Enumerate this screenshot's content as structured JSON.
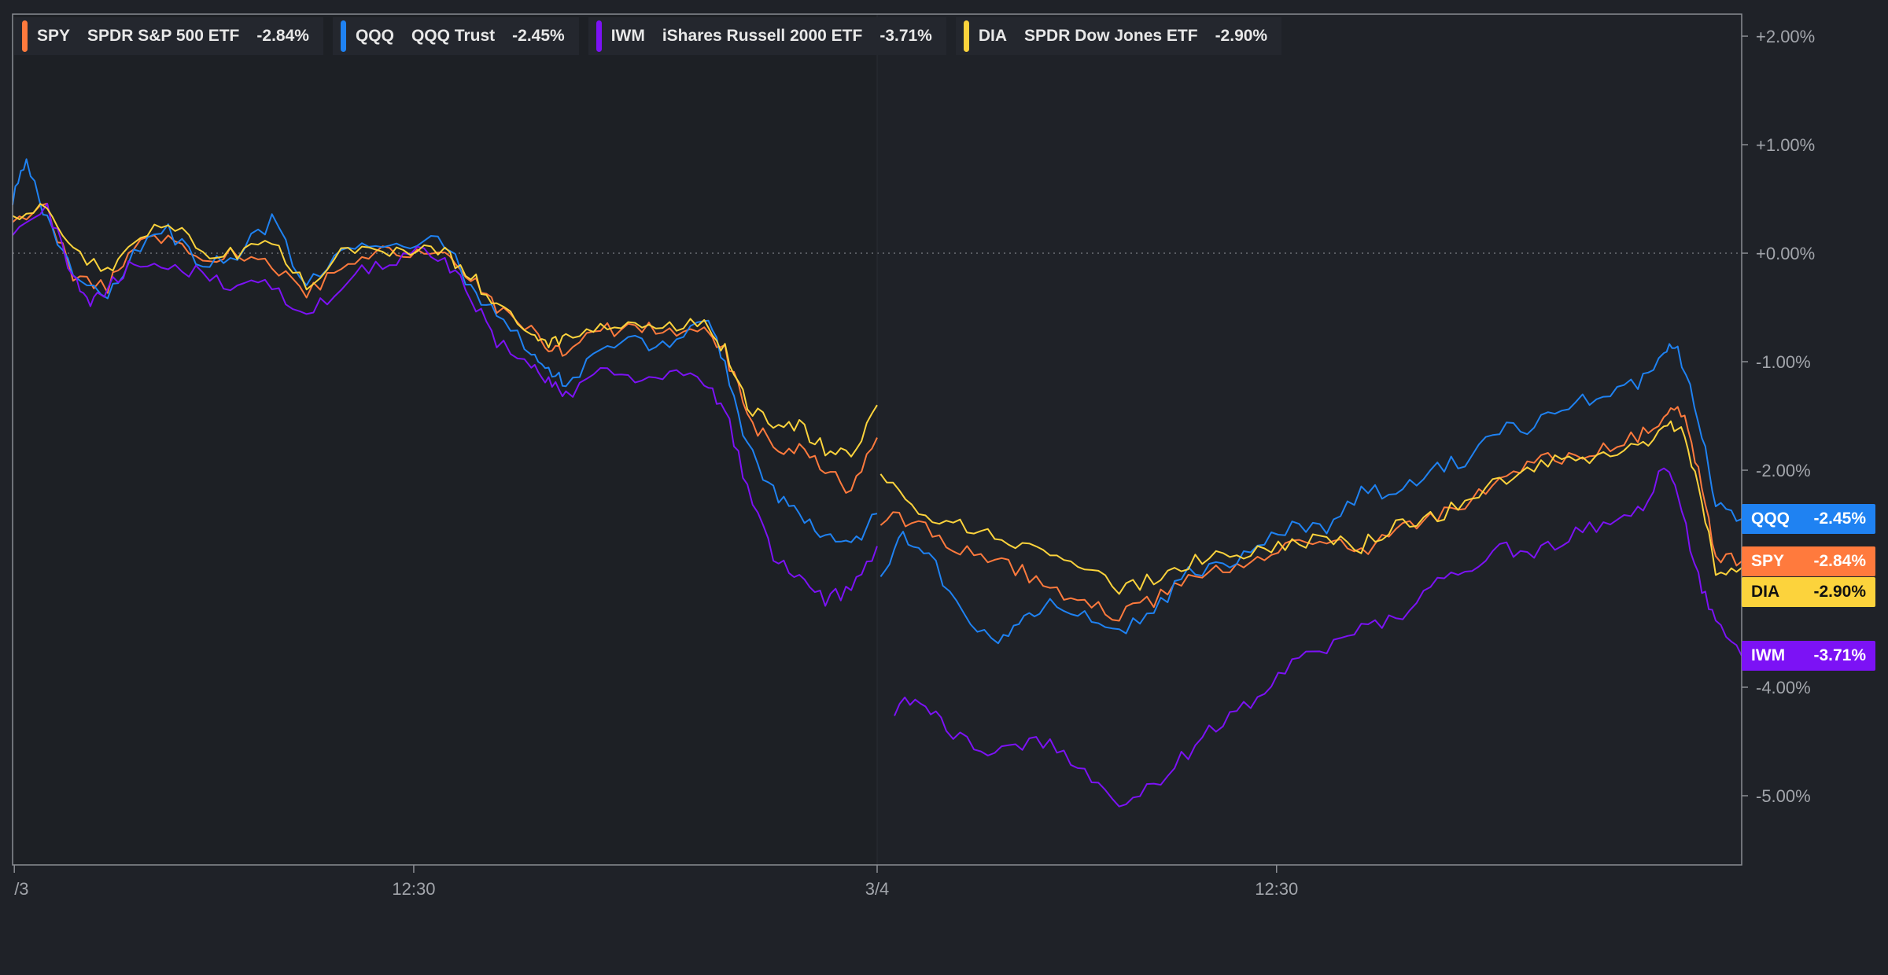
{
  "chart_data": {
    "type": "line",
    "ylim": [
      -5.6,
      2.2
    ],
    "yticks": [
      2.0,
      1.0,
      0.0,
      -1.0,
      -2.0,
      -3.0,
      -4.0,
      -5.0
    ],
    "ytick_labels": [
      "+2.00%",
      "+1.00%",
      "+0.00%",
      "-1.00%",
      "-2.00%",
      "",
      "-4.00%",
      "-5.00%"
    ],
    "x_range": [
      0,
      1000
    ],
    "xticks": [
      {
        "x": 1,
        "label": "/3"
      },
      {
        "x": 232,
        "label": "12:30"
      },
      {
        "x": 500,
        "label": "3/4"
      },
      {
        "x": 731,
        "label": "12:30"
      }
    ],
    "session_break": 500,
    "zero_line": 0.0,
    "series": [
      {
        "symbol": "SPY",
        "name": "SPDR S&P 500 ETF",
        "change_label": "-2.84%",
        "color": "#ff7a3d",
        "last": -2.84,
        "points": [
          [
            0,
            0.3
          ],
          [
            20,
            0.4
          ],
          [
            35,
            -0.2
          ],
          [
            55,
            -0.3
          ],
          [
            70,
            0.1
          ],
          [
            90,
            0.1
          ],
          [
            110,
            -0.1
          ],
          [
            130,
            0.0
          ],
          [
            150,
            -0.1
          ],
          [
            170,
            -0.4
          ],
          [
            190,
            -0.1
          ],
          [
            210,
            0.0
          ],
          [
            230,
            0.0
          ],
          [
            250,
            0.0
          ],
          [
            265,
            -0.2
          ],
          [
            280,
            -0.5
          ],
          [
            300,
            -0.7
          ],
          [
            310,
            -0.9
          ],
          [
            320,
            -0.9
          ],
          [
            340,
            -0.7
          ],
          [
            360,
            -0.7
          ],
          [
            380,
            -0.7
          ],
          [
            400,
            -0.7
          ],
          [
            412,
            -0.9
          ],
          [
            425,
            -1.5
          ],
          [
            440,
            -1.8
          ],
          [
            455,
            -1.8
          ],
          [
            470,
            -2.0
          ],
          [
            485,
            -2.2
          ],
          [
            500,
            -1.7
          ],
          [
            502,
            -2.45
          ],
          [
            520,
            -2.45
          ],
          [
            540,
            -2.7
          ],
          [
            560,
            -2.75
          ],
          [
            580,
            -2.9
          ],
          [
            600,
            -3.1
          ],
          [
            620,
            -3.2
          ],
          [
            640,
            -3.35
          ],
          [
            660,
            -3.2
          ],
          [
            680,
            -2.95
          ],
          [
            700,
            -2.9
          ],
          [
            720,
            -2.8
          ],
          [
            740,
            -2.7
          ],
          [
            760,
            -2.65
          ],
          [
            780,
            -2.75
          ],
          [
            800,
            -2.55
          ],
          [
            820,
            -2.45
          ],
          [
            840,
            -2.3
          ],
          [
            860,
            -2.1
          ],
          [
            880,
            -1.9
          ],
          [
            900,
            -1.9
          ],
          [
            920,
            -1.8
          ],
          [
            940,
            -1.7
          ],
          [
            955,
            -1.5
          ],
          [
            965,
            -1.45
          ],
          [
            975,
            -2.0
          ],
          [
            985,
            -2.8
          ],
          [
            1000,
            -2.84
          ]
        ]
      },
      {
        "symbol": "QQQ",
        "name": "QQQ Trust",
        "change_label": "-2.45%",
        "color": "#1f82f2",
        "last": -2.45,
        "points": [
          [
            0,
            0.5
          ],
          [
            8,
            0.85
          ],
          [
            20,
            0.3
          ],
          [
            35,
            -0.2
          ],
          [
            55,
            -0.4
          ],
          [
            70,
            0.0
          ],
          [
            90,
            0.2
          ],
          [
            110,
            -0.1
          ],
          [
            130,
            0.0
          ],
          [
            150,
            0.3
          ],
          [
            170,
            -0.3
          ],
          [
            190,
            0.0
          ],
          [
            210,
            0.1
          ],
          [
            230,
            0.1
          ],
          [
            250,
            0.1
          ],
          [
            265,
            -0.3
          ],
          [
            280,
            -0.6
          ],
          [
            300,
            -0.9
          ],
          [
            310,
            -1.1
          ],
          [
            320,
            -1.2
          ],
          [
            340,
            -0.9
          ],
          [
            360,
            -0.8
          ],
          [
            380,
            -0.9
          ],
          [
            400,
            -0.6
          ],
          [
            412,
            -1.0
          ],
          [
            425,
            -1.8
          ],
          [
            440,
            -2.2
          ],
          [
            455,
            -2.4
          ],
          [
            470,
            -2.6
          ],
          [
            485,
            -2.7
          ],
          [
            500,
            -2.4
          ],
          [
            502,
            -3.0
          ],
          [
            515,
            -2.6
          ],
          [
            530,
            -2.8
          ],
          [
            550,
            -3.3
          ],
          [
            570,
            -3.6
          ],
          [
            585,
            -3.4
          ],
          [
            600,
            -3.2
          ],
          [
            620,
            -3.3
          ],
          [
            640,
            -3.5
          ],
          [
            660,
            -3.3
          ],
          [
            680,
            -2.95
          ],
          [
            700,
            -2.9
          ],
          [
            720,
            -2.7
          ],
          [
            740,
            -2.5
          ],
          [
            760,
            -2.55
          ],
          [
            780,
            -2.2
          ],
          [
            800,
            -2.2
          ],
          [
            820,
            -2.0
          ],
          [
            840,
            -1.9
          ],
          [
            860,
            -1.6
          ],
          [
            880,
            -1.6
          ],
          [
            900,
            -1.4
          ],
          [
            920,
            -1.3
          ],
          [
            940,
            -1.2
          ],
          [
            955,
            -0.9
          ],
          [
            963,
            -0.9
          ],
          [
            975,
            -1.5
          ],
          [
            985,
            -2.3
          ],
          [
            1000,
            -2.45
          ]
        ]
      },
      {
        "symbol": "IWM",
        "name": "iShares Russell 2000 ETF",
        "change_label": "-3.71%",
        "color": "#7c12f5",
        "last": -3.71,
        "points": [
          [
            0,
            0.2
          ],
          [
            20,
            0.4
          ],
          [
            35,
            -0.2
          ],
          [
            45,
            -0.5
          ],
          [
            55,
            -0.3
          ],
          [
            70,
            -0.1
          ],
          [
            90,
            -0.1
          ],
          [
            110,
            -0.2
          ],
          [
            130,
            -0.3
          ],
          [
            150,
            -0.3
          ],
          [
            170,
            -0.6
          ],
          [
            190,
            -0.3
          ],
          [
            210,
            -0.1
          ],
          [
            230,
            0.0
          ],
          [
            250,
            -0.05
          ],
          [
            265,
            -0.4
          ],
          [
            280,
            -0.8
          ],
          [
            300,
            -1.0
          ],
          [
            310,
            -1.2
          ],
          [
            320,
            -1.3
          ],
          [
            340,
            -1.1
          ],
          [
            360,
            -1.2
          ],
          [
            380,
            -1.1
          ],
          [
            400,
            -1.2
          ],
          [
            412,
            -1.4
          ],
          [
            425,
            -2.2
          ],
          [
            440,
            -2.8
          ],
          [
            455,
            -3.0
          ],
          [
            470,
            -3.2
          ],
          [
            485,
            -3.1
          ],
          [
            500,
            -2.7
          ],
          [
            510,
            -4.2
          ],
          [
            525,
            -4.1
          ],
          [
            540,
            -4.4
          ],
          [
            560,
            -4.6
          ],
          [
            580,
            -4.55
          ],
          [
            600,
            -4.5
          ],
          [
            620,
            -4.8
          ],
          [
            640,
            -5.1
          ],
          [
            660,
            -4.9
          ],
          [
            680,
            -4.6
          ],
          [
            700,
            -4.3
          ],
          [
            720,
            -4.1
          ],
          [
            740,
            -3.8
          ],
          [
            760,
            -3.65
          ],
          [
            780,
            -3.4
          ],
          [
            800,
            -3.4
          ],
          [
            820,
            -3.1
          ],
          [
            840,
            -2.9
          ],
          [
            860,
            -2.7
          ],
          [
            880,
            -2.8
          ],
          [
            900,
            -2.6
          ],
          [
            920,
            -2.5
          ],
          [
            940,
            -2.4
          ],
          [
            955,
            -2.0
          ],
          [
            963,
            -2.2
          ],
          [
            975,
            -3.0
          ],
          [
            985,
            -3.4
          ],
          [
            1000,
            -3.71
          ]
        ]
      },
      {
        "symbol": "DIA",
        "name": "SPDR Dow Jones ETF",
        "change_label": "-2.90%",
        "color": "#fcd33c",
        "last": -2.9,
        "points": [
          [
            0,
            0.35
          ],
          [
            20,
            0.4
          ],
          [
            35,
            0.0
          ],
          [
            55,
            -0.2
          ],
          [
            70,
            0.1
          ],
          [
            90,
            0.3
          ],
          [
            110,
            0.0
          ],
          [
            130,
            0.0
          ],
          [
            150,
            0.1
          ],
          [
            170,
            -0.3
          ],
          [
            190,
            0.0
          ],
          [
            210,
            0.0
          ],
          [
            230,
            0.05
          ],
          [
            250,
            0.0
          ],
          [
            265,
            -0.2
          ],
          [
            280,
            -0.5
          ],
          [
            300,
            -0.7
          ],
          [
            310,
            -0.8
          ],
          [
            320,
            -0.8
          ],
          [
            340,
            -0.7
          ],
          [
            360,
            -0.7
          ],
          [
            380,
            -0.7
          ],
          [
            400,
            -0.6
          ],
          [
            412,
            -0.9
          ],
          [
            425,
            -1.4
          ],
          [
            440,
            -1.6
          ],
          [
            455,
            -1.6
          ],
          [
            470,
            -1.8
          ],
          [
            485,
            -1.9
          ],
          [
            500,
            -1.4
          ],
          [
            502,
            -2.0
          ],
          [
            520,
            -2.3
          ],
          [
            540,
            -2.5
          ],
          [
            560,
            -2.55
          ],
          [
            580,
            -2.7
          ],
          [
            600,
            -2.8
          ],
          [
            620,
            -2.9
          ],
          [
            640,
            -3.1
          ],
          [
            660,
            -3.0
          ],
          [
            680,
            -2.85
          ],
          [
            700,
            -2.8
          ],
          [
            720,
            -2.75
          ],
          [
            740,
            -2.7
          ],
          [
            760,
            -2.6
          ],
          [
            780,
            -2.7
          ],
          [
            800,
            -2.5
          ],
          [
            820,
            -2.45
          ],
          [
            840,
            -2.3
          ],
          [
            860,
            -2.1
          ],
          [
            880,
            -1.95
          ],
          [
            900,
            -1.9
          ],
          [
            920,
            -1.85
          ],
          [
            940,
            -1.8
          ],
          [
            955,
            -1.6
          ],
          [
            965,
            -1.6
          ],
          [
            975,
            -2.2
          ],
          [
            985,
            -2.9
          ],
          [
            1000,
            -2.9
          ]
        ]
      }
    ],
    "badges": [
      {
        "symbol": "QQQ",
        "label": "-2.45%",
        "color": "#1f82f2",
        "dark": false
      },
      {
        "symbol": "SPY",
        "label": "-2.84%",
        "color": "#ff7a3d",
        "dark": false
      },
      {
        "symbol": "DIA",
        "label": "-2.90%",
        "color": "#fcd33c",
        "dark": true
      },
      {
        "symbol": "IWM",
        "label": "-3.71%",
        "color": "#7c12f5",
        "dark": false
      }
    ]
  }
}
